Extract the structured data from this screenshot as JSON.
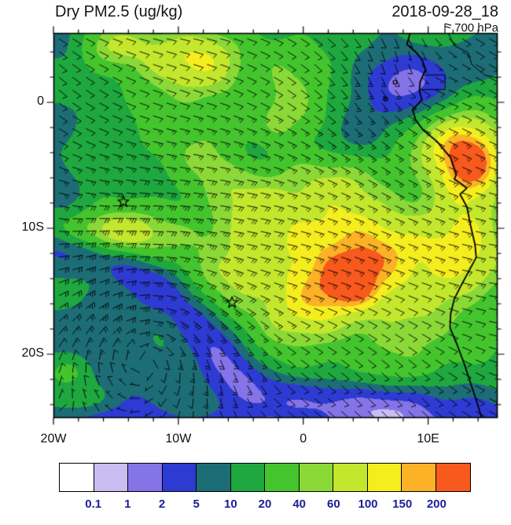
{
  "header": {
    "title": "Dry PM2.5 (ug/kg)",
    "datetime": "2018-09-28_18",
    "level": "700 hPa"
  },
  "chart_data": {
    "type": "heatmap",
    "subtype": "filled-contour-map-with-wind-barbs",
    "title": "Dry PM2.5 (ug/kg)",
    "valid_time": "2018-09-28_18",
    "pressure_level": "700 hPa",
    "units": "ug/kg",
    "axes": {
      "lon_range": [
        -20,
        15.5
      ],
      "lat_range": [
        5.5,
        -25
      ],
      "x_ticks": [
        {
          "label": "20W",
          "lon": -20
        },
        {
          "label": "10W",
          "lon": -10
        },
        {
          "label": "0",
          "lon": 0
        },
        {
          "label": "10E",
          "lon": 10
        }
      ],
      "y_ticks": [
        {
          "label": "0",
          "lat": 0
        },
        {
          "label": "10S",
          "lat": -10
        },
        {
          "label": "20S",
          "lat": -20
        }
      ],
      "minor_tick_step_deg": 2
    },
    "levels": [
      0.1,
      1,
      2,
      5,
      10,
      20,
      40,
      60,
      100,
      150,
      200
    ],
    "colorbar": {
      "colors": [
        "#ffffff",
        "#c9bdf2",
        "#8573e8",
        "#2e3bd3",
        "#1d6d77",
        "#1fa83f",
        "#44c52e",
        "#8bd937",
        "#c3e72c",
        "#f5ee1e",
        "#fcb126",
        "#f8591d"
      ],
      "tick_labels": [
        "0.1",
        "1",
        "2",
        "5",
        "10",
        "20",
        "40",
        "60",
        "100",
        "150",
        "200"
      ],
      "label_color": "#1d1d99"
    },
    "markers": [
      {
        "type": "star",
        "lon": -14.4,
        "lat": -7.9
      },
      {
        "type": "star",
        "lon": -5.7,
        "lat": -15.9
      }
    ],
    "islands": [
      {
        "lon": 6.6,
        "lat": 0.25
      },
      {
        "lon": 7.35,
        "lat": 1.6
      }
    ],
    "coastline": [
      [
        8.55,
        5.5
      ],
      [
        8.3,
        4.6
      ],
      [
        8.95,
        4.05
      ],
      [
        9.5,
        3.4
      ],
      [
        9.8,
        2.6
      ],
      [
        9.35,
        1.6
      ],
      [
        9.3,
        0.9
      ],
      [
        9.5,
        0.2
      ],
      [
        8.75,
        -0.6
      ],
      [
        9.0,
        -1.4
      ],
      [
        9.6,
        -2.2
      ],
      [
        10.7,
        -3.1
      ],
      [
        11.8,
        -4.4
      ],
      [
        12.25,
        -5.75
      ],
      [
        12.1,
        -6.1
      ],
      [
        13.1,
        -6.8
      ],
      [
        12.55,
        -7.3
      ],
      [
        13.1,
        -8.3
      ],
      [
        13.4,
        -9.8
      ],
      [
        13.75,
        -11.3
      ],
      [
        13.85,
        -12.3
      ],
      [
        13.1,
        -13.7
      ],
      [
        12.5,
        -14.8
      ],
      [
        12.1,
        -15.6
      ],
      [
        11.8,
        -16.8
      ],
      [
        11.75,
        -17.9
      ],
      [
        12.3,
        -19.2
      ],
      [
        12.9,
        -20.8
      ],
      [
        13.4,
        -22.3
      ],
      [
        13.9,
        -23.8
      ],
      [
        14.3,
        -25.1
      ]
    ],
    "borders": [
      [
        [
          9.8,
          2.17
        ],
        [
          11.35,
          2.17
        ],
        [
          11.35,
          1.02
        ],
        [
          9.35,
          1.02
        ]
      ],
      [
        [
          11.6,
          5.5
        ],
        [
          12.1,
          4.5
        ],
        [
          13.2,
          3.95
        ],
        [
          13.5,
          3.0
        ],
        [
          14.55,
          2.15
        ],
        [
          15.5,
          1.95
        ]
      ]
    ],
    "field": {
      "comment": "log10(ug/kg) gaussian components [lon,lat,sigma_lon,sigma_lat,amplitude]",
      "base_log10": 1.15,
      "blobs": [
        [
          1.5,
          -13.5,
          8.5,
          5.2,
          1.02
        ],
        [
          -3,
          -2.5,
          5.5,
          3.5,
          0.5
        ],
        [
          -8,
          3.2,
          5,
          2.2,
          0.72
        ],
        [
          -15,
          4.5,
          2.2,
          1.3,
          0.5
        ],
        [
          -16,
          -10.3,
          4.5,
          1.4,
          0.68
        ],
        [
          13.2,
          -8,
          2.6,
          5.5,
          0.5
        ],
        [
          12.5,
          -2.5,
          2.8,
          2.4,
          0.62
        ],
        [
          13.8,
          -5,
          1.8,
          1.6,
          0.45
        ],
        [
          4.3,
          -15,
          1.3,
          0.9,
          0.22
        ],
        [
          5,
          -12,
          4.5,
          3.2,
          0.22
        ],
        [
          8.5,
          1.5,
          2.3,
          1.8,
          -0.85
        ],
        [
          7.5,
          0.8,
          3.8,
          2.8,
          -0.3
        ],
        [
          15.2,
          4.2,
          2.2,
          1.8,
          -0.4
        ],
        [
          -4.2,
          1.2,
          1.6,
          1.9,
          -0.4
        ],
        [
          0.6,
          -3.4,
          1.8,
          1.3,
          -0.3
        ],
        [
          -3.8,
          -4,
          1.5,
          1.2,
          -0.35
        ],
        [
          4.6,
          -2.6,
          2.0,
          1.5,
          -0.35
        ],
        [
          -19.5,
          4.8,
          1.8,
          1.6,
          -0.5
        ],
        [
          -19.8,
          -6,
          1.6,
          2.2,
          -0.35
        ],
        [
          -20,
          -1.5,
          1.4,
          1.4,
          -0.3
        ],
        [
          -13,
          -20,
          8,
          5.5,
          -0.42
        ],
        [
          -20,
          -11.5,
          1.4,
          1.1,
          -0.5
        ],
        [
          -17.3,
          -12.1,
          1.4,
          1.1,
          -0.5
        ],
        [
          -14.7,
          -13,
          1.4,
          1.1,
          -0.5
        ],
        [
          -12.3,
          -14.1,
          1.4,
          1.1,
          -0.5
        ],
        [
          -10.3,
          -15.4,
          1.4,
          1.1,
          -0.5
        ],
        [
          -8.8,
          -17,
          1.4,
          1.1,
          -0.5
        ],
        [
          -7.6,
          -18.7,
          1.4,
          1.1,
          -0.5
        ],
        [
          -6.5,
          -20.4,
          1.4,
          1.1,
          -0.5
        ],
        [
          -5.2,
          -21.9,
          1.4,
          1.1,
          -0.5
        ],
        [
          -2.5,
          -23,
          2,
          1.1,
          -0.45
        ],
        [
          1,
          -23.6,
          2,
          1.1,
          -0.45
        ],
        [
          4.5,
          -23.9,
          2,
          1.1,
          -0.45
        ],
        [
          8,
          -24.1,
          2,
          1.1,
          -0.45
        ],
        [
          -15,
          -26.2,
          6,
          2.2,
          -0.5
        ],
        [
          -5,
          -26.4,
          6,
          2.2,
          -0.55
        ],
        [
          5,
          -26.6,
          6,
          2.2,
          -0.6
        ],
        [
          13.5,
          -26.2,
          5,
          2.4,
          -0.6
        ],
        [
          -16.8,
          -23.6,
          2.6,
          1.1,
          0.5
        ],
        [
          -18.8,
          -21.3,
          1.5,
          0.9,
          0.42
        ],
        [
          -9.6,
          -24.5,
          2.2,
          0.9,
          0.45
        ]
      ]
    },
    "wind": {
      "style": "barbs",
      "base_uv": [
        -5.5,
        1.8
      ],
      "vortices": [
        {
          "lon": -12.5,
          "lat": -19,
          "omega": 2.6,
          "r2": 45
        },
        {
          "lon": 8.5,
          "lat": 1.5,
          "omega": -1.2,
          "r2": 14
        }
      ],
      "grid_step_deg": [
        1.076,
        1.02
      ]
    }
  }
}
